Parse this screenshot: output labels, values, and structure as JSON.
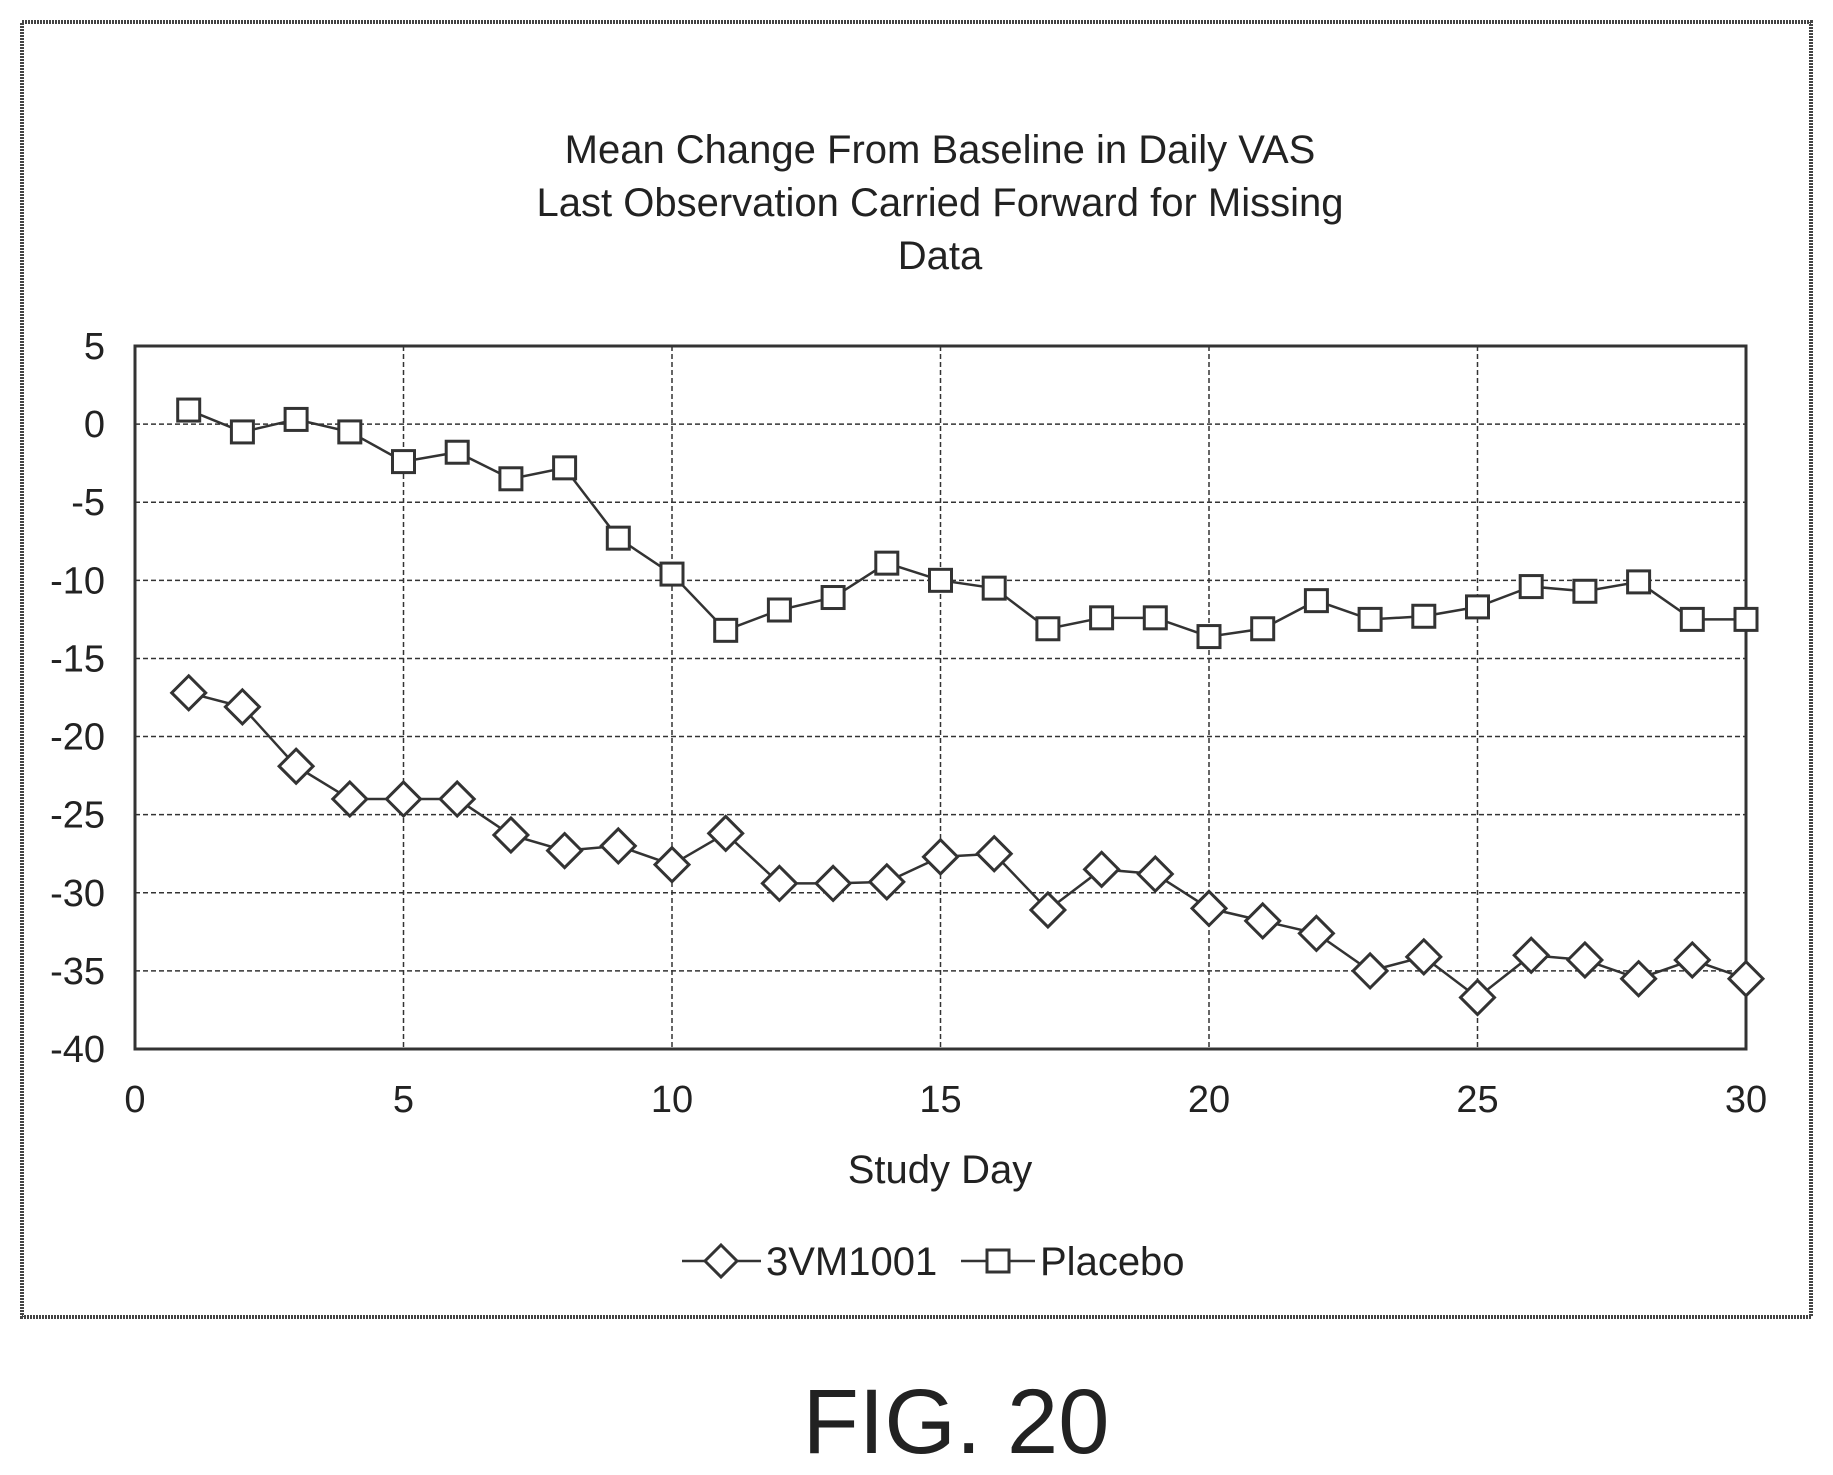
{
  "figure_caption": "FIG. 20",
  "chart_data": {
    "type": "line",
    "title_lines": [
      "Mean Change From Baseline in Daily VAS",
      "Last Observation Carried Forward for Missing",
      "Data"
    ],
    "xlabel": "Study Day",
    "ylabel": "",
    "xlim": [
      0,
      30
    ],
    "ylim": [
      -40,
      5
    ],
    "x_ticks": [
      "0",
      "5",
      "10",
      "15",
      "20",
      "25",
      "30"
    ],
    "y_ticks": [
      "5",
      "0",
      "-5",
      "-10",
      "-15",
      "-20",
      "-25",
      "-30",
      "-35",
      "-40"
    ],
    "grid": true,
    "legend_position": "bottom",
    "x": [
      1,
      2,
      3,
      4,
      5,
      6,
      7,
      8,
      9,
      10,
      11,
      12,
      13,
      14,
      15,
      16,
      17,
      18,
      19,
      20,
      21,
      22,
      23,
      24,
      25,
      26,
      27,
      28,
      29,
      30
    ],
    "series": [
      {
        "name": "3VM1001",
        "marker": "diamond",
        "values": [
          -17.2,
          -18.1,
          -21.9,
          -24.0,
          -24.0,
          -24.0,
          -26.3,
          -27.3,
          -27.0,
          -28.2,
          -26.2,
          -29.4,
          -29.4,
          -29.3,
          -27.7,
          -27.5,
          -31.1,
          -28.5,
          -28.8,
          -31.0,
          -31.8,
          -32.6,
          -35.0,
          -34.1,
          -36.7,
          -34.0,
          -34.3,
          -35.5,
          -34.3,
          -35.5
        ]
      },
      {
        "name": "Placebo",
        "marker": "square",
        "values": [
          0.9,
          -0.5,
          0.3,
          -0.5,
          -2.4,
          -1.8,
          -3.5,
          -2.8,
          -7.3,
          -9.6,
          -13.2,
          -11.9,
          -11.1,
          -8.9,
          -10.0,
          -10.5,
          -13.1,
          -12.4,
          -12.4,
          -13.6,
          -13.1,
          -11.3,
          -12.5,
          -12.3,
          -11.7,
          -10.4,
          -10.7,
          -10.1,
          -12.5,
          -12.5
        ]
      }
    ]
  }
}
